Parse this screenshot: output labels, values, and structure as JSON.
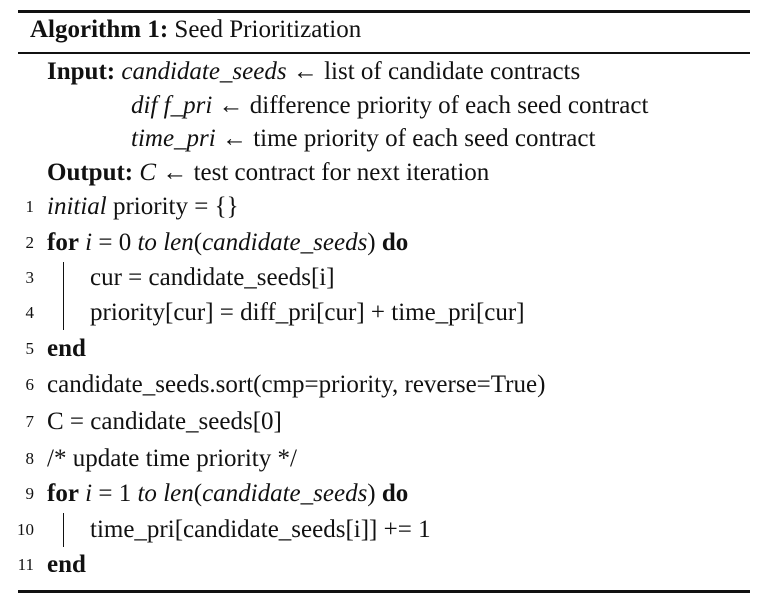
{
  "algorithm": {
    "label": "Algorithm 1:",
    "title": "Seed Prioritization"
  },
  "io": {
    "input_kw": "Input:",
    "inputs": [
      {
        "name": "candidate_seeds",
        "arrow": "←",
        "desc": "list of candidate contracts"
      },
      {
        "name": "dif f_pri",
        "arrow": "←",
        "desc": "difference priority of each seed contract"
      },
      {
        "name": "time_pri",
        "arrow": "←",
        "desc": "time priority of each seed contract"
      }
    ],
    "output_kw": "Output:",
    "output": {
      "name": "C",
      "arrow": "←",
      "desc": "test contract for next iteration"
    }
  },
  "lines": [
    {
      "num": "1",
      "parts": [
        "initial",
        " priority = {}"
      ]
    },
    {
      "num": "2",
      "parts": [
        "for",
        " ",
        "i",
        " = 0 ",
        "to",
        " ",
        "len",
        "(",
        "candidate_seeds",
        ") ",
        "do"
      ]
    },
    {
      "num": "3",
      "parts": [
        "cur = candidate_seeds[i]"
      ]
    },
    {
      "num": "4",
      "parts": [
        "priority[cur] = diff_pri[cur] + time_pri[cur]"
      ]
    },
    {
      "num": "5",
      "parts": [
        "end"
      ]
    },
    {
      "num": "6",
      "parts": [
        "candidate_seeds.sort(cmp=priority, reverse=True)"
      ]
    },
    {
      "num": "7",
      "parts": [
        "C = candidate_seeds[0]"
      ]
    },
    {
      "num": "8",
      "parts": [
        "/* update time priority */"
      ]
    },
    {
      "num": "9",
      "parts": [
        "for",
        " ",
        "i",
        " = 1 ",
        "to",
        " ",
        "len",
        "(",
        "candidate_seeds",
        ") ",
        "do"
      ]
    },
    {
      "num": "10",
      "parts": [
        "time_pri[candidate_seeds[i]] += 1"
      ]
    },
    {
      "num": "11",
      "parts": [
        "end"
      ]
    }
  ]
}
